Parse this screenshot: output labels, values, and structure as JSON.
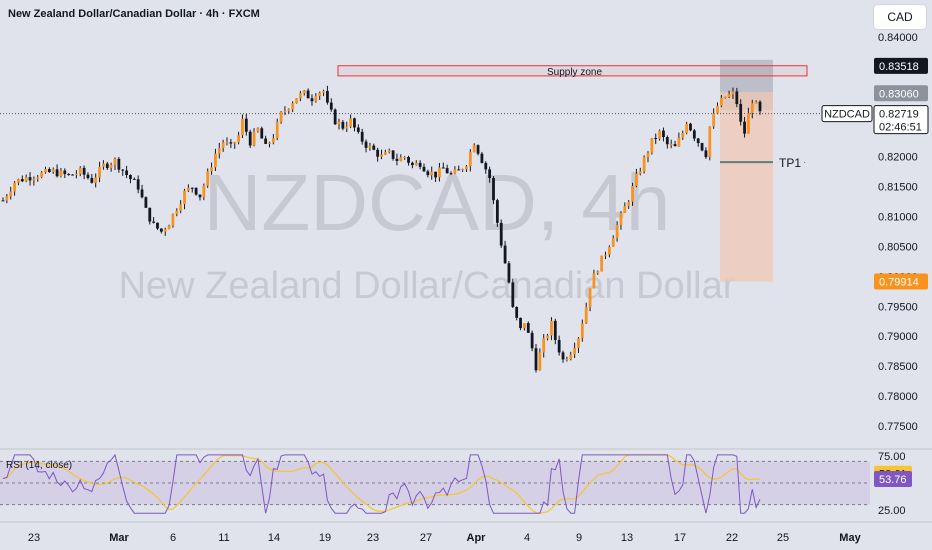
{
  "header": {
    "title": "New Zealand Dollar/Canadian Dollar · 4h · FXCM",
    "currency_button": "CAD"
  },
  "watermark": {
    "symbol_timeframe": "NZDCAD, 4h",
    "name": "New Zealand Dollar/Canadian Dollar"
  },
  "colors": {
    "background": "#e0e3eb",
    "candle": "#f7931e",
    "wick": "#131722",
    "supply_zone": "#e53935",
    "target_zone": "#f0c8b4",
    "stop_zone": "#9fa3ad",
    "tp_line": "#5f7f79",
    "rsi_line": "#7e57c2",
    "rsi_ma": "#f7c52c",
    "rsi_band": "#d3cde6"
  },
  "chart_data": {
    "type": "candlestick",
    "title": "New Zealand Dollar/Canadian Dollar · 4h · FXCM",
    "symbol": "NZDCAD",
    "ylim": [
      0.7725,
      0.8425
    ],
    "y_ticks": [
      "0.84000",
      "0.83500",
      "0.83000",
      "0.82500",
      "0.82000",
      "0.81500",
      "0.81000",
      "0.80500",
      "0.80000",
      "0.79500",
      "0.79000",
      "0.78500",
      "0.78000",
      "0.77500"
    ],
    "x_ticks": [
      "23",
      "Mar",
      "6",
      "11",
      "14",
      "19",
      "23",
      "27",
      "Apr",
      "4",
      "9",
      "13",
      "17",
      "22",
      "25",
      "May"
    ],
    "price_labels": [
      {
        "text": "0.83518",
        "value": 0.83518,
        "style": "dark"
      },
      {
        "text": "0.83060",
        "value": 0.8306,
        "style": "gray"
      },
      {
        "text": "0.82719",
        "value": 0.82719,
        "style": "symbol",
        "symbol": "NZDCAD",
        "countdown": "02:46:51"
      },
      {
        "text": "0.79914",
        "value": 0.79914,
        "style": "orange"
      }
    ],
    "annotations": {
      "supply_zone": {
        "label": "Supply zone",
        "top": 0.8352,
        "bottom": 0.8335
      },
      "tp": {
        "label": "TP1",
        "value": 0.8191
      },
      "position": {
        "entry": 0.8308,
        "stop": 0.83518,
        "target": 0.79914
      }
    },
    "ohlc_path": [
      [
        0,
        0.8127
      ],
      [
        3,
        0.8158
      ],
      [
        6,
        0.8165
      ],
      [
        9,
        0.817
      ],
      [
        13,
        0.8175
      ],
      [
        17,
        0.8168
      ],
      [
        20,
        0.8175
      ],
      [
        23,
        0.816
      ],
      [
        26,
        0.8185
      ],
      [
        29,
        0.8193
      ],
      [
        32,
        0.817
      ],
      [
        35,
        0.815
      ],
      [
        37,
        0.811
      ],
      [
        39,
        0.8085
      ],
      [
        41,
        0.8075
      ],
      [
        43,
        0.809
      ],
      [
        45,
        0.8115
      ],
      [
        47,
        0.814
      ],
      [
        49,
        0.815
      ],
      [
        51,
        0.8135
      ],
      [
        53,
        0.817
      ],
      [
        55,
        0.8205
      ],
      [
        57,
        0.8225
      ],
      [
        59,
        0.8215
      ],
      [
        61,
        0.8235
      ],
      [
        62,
        0.826
      ],
      [
        64,
        0.8225
      ],
      [
        66,
        0.8245
      ],
      [
        68,
        0.8215
      ],
      [
        70,
        0.8235
      ],
      [
        72,
        0.827
      ],
      [
        74,
        0.8285
      ],
      [
        76,
        0.83
      ],
      [
        78,
        0.8305
      ],
      [
        80,
        0.8298
      ],
      [
        81,
        0.8308
      ],
      [
        83,
        0.831
      ],
      [
        84,
        0.8285
      ],
      [
        86,
        0.826
      ],
      [
        88,
        0.825
      ],
      [
        90,
        0.826
      ],
      [
        92,
        0.8235
      ],
      [
        94,
        0.822
      ],
      [
        96,
        0.821
      ],
      [
        98,
        0.82
      ],
      [
        100,
        0.8205
      ],
      [
        102,
        0.8195
      ],
      [
        104,
        0.82
      ],
      [
        106,
        0.8185
      ],
      [
        108,
        0.819
      ],
      [
        110,
        0.8175
      ],
      [
        112,
        0.817
      ],
      [
        114,
        0.818
      ],
      [
        116,
        0.817
      ],
      [
        118,
        0.8175
      ],
      [
        120,
        0.819
      ],
      [
        122,
        0.8225
      ],
      [
        124,
        0.8195
      ],
      [
        126,
        0.8165
      ],
      [
        127,
        0.8125
      ],
      [
        129,
        0.8055
      ],
      [
        131,
        0.799
      ],
      [
        132,
        0.7945
      ],
      [
        134,
        0.791
      ],
      [
        135,
        0.7925
      ],
      [
        137,
        0.788
      ],
      [
        138,
        0.785
      ],
      [
        140,
        0.789
      ],
      [
        142,
        0.792
      ],
      [
        143,
        0.7895
      ],
      [
        145,
        0.786
      ],
      [
        147,
        0.7875
      ],
      [
        149,
        0.79
      ],
      [
        151,
        0.795
      ],
      [
        152,
        0.7985
      ],
      [
        154,
        0.8015
      ],
      [
        156,
        0.804
      ],
      [
        158,
        0.807
      ],
      [
        160,
        0.81
      ],
      [
        162,
        0.813
      ],
      [
        164,
        0.8165
      ],
      [
        166,
        0.8195
      ],
      [
        168,
        0.8225
      ],
      [
        170,
        0.824
      ],
      [
        172,
        0.822
      ],
      [
        174,
        0.8215
      ],
      [
        176,
        0.824
      ],
      [
        177,
        0.826
      ],
      [
        179,
        0.8235
      ],
      [
        181,
        0.8215
      ],
      [
        182,
        0.8205
      ],
      [
        183,
        0.825
      ],
      [
        185,
        0.8285
      ],
      [
        187,
        0.83
      ],
      [
        189,
        0.8305
      ],
      [
        190,
        0.829
      ],
      [
        191,
        0.8255
      ],
      [
        192,
        0.824
      ],
      [
        193,
        0.827
      ],
      [
        194,
        0.8295
      ],
      [
        195,
        0.8285
      ],
      [
        196,
        0.8272
      ]
    ],
    "ohlc_path_note_x": "candle index",
    "rsi": {
      "label": "RSI (14, close)",
      "ylim": [
        20,
        80
      ],
      "levels": [
        70,
        50,
        30
      ],
      "tick_values": [
        {
          "text": "75.00",
          "value": 75
        },
        {
          "text": "25.00",
          "value": 25
        }
      ],
      "value_label": {
        "text": "53.76",
        "value": 53.76
      },
      "ma_label": {
        "text": "58.61",
        "value": 58.61
      }
    }
  }
}
